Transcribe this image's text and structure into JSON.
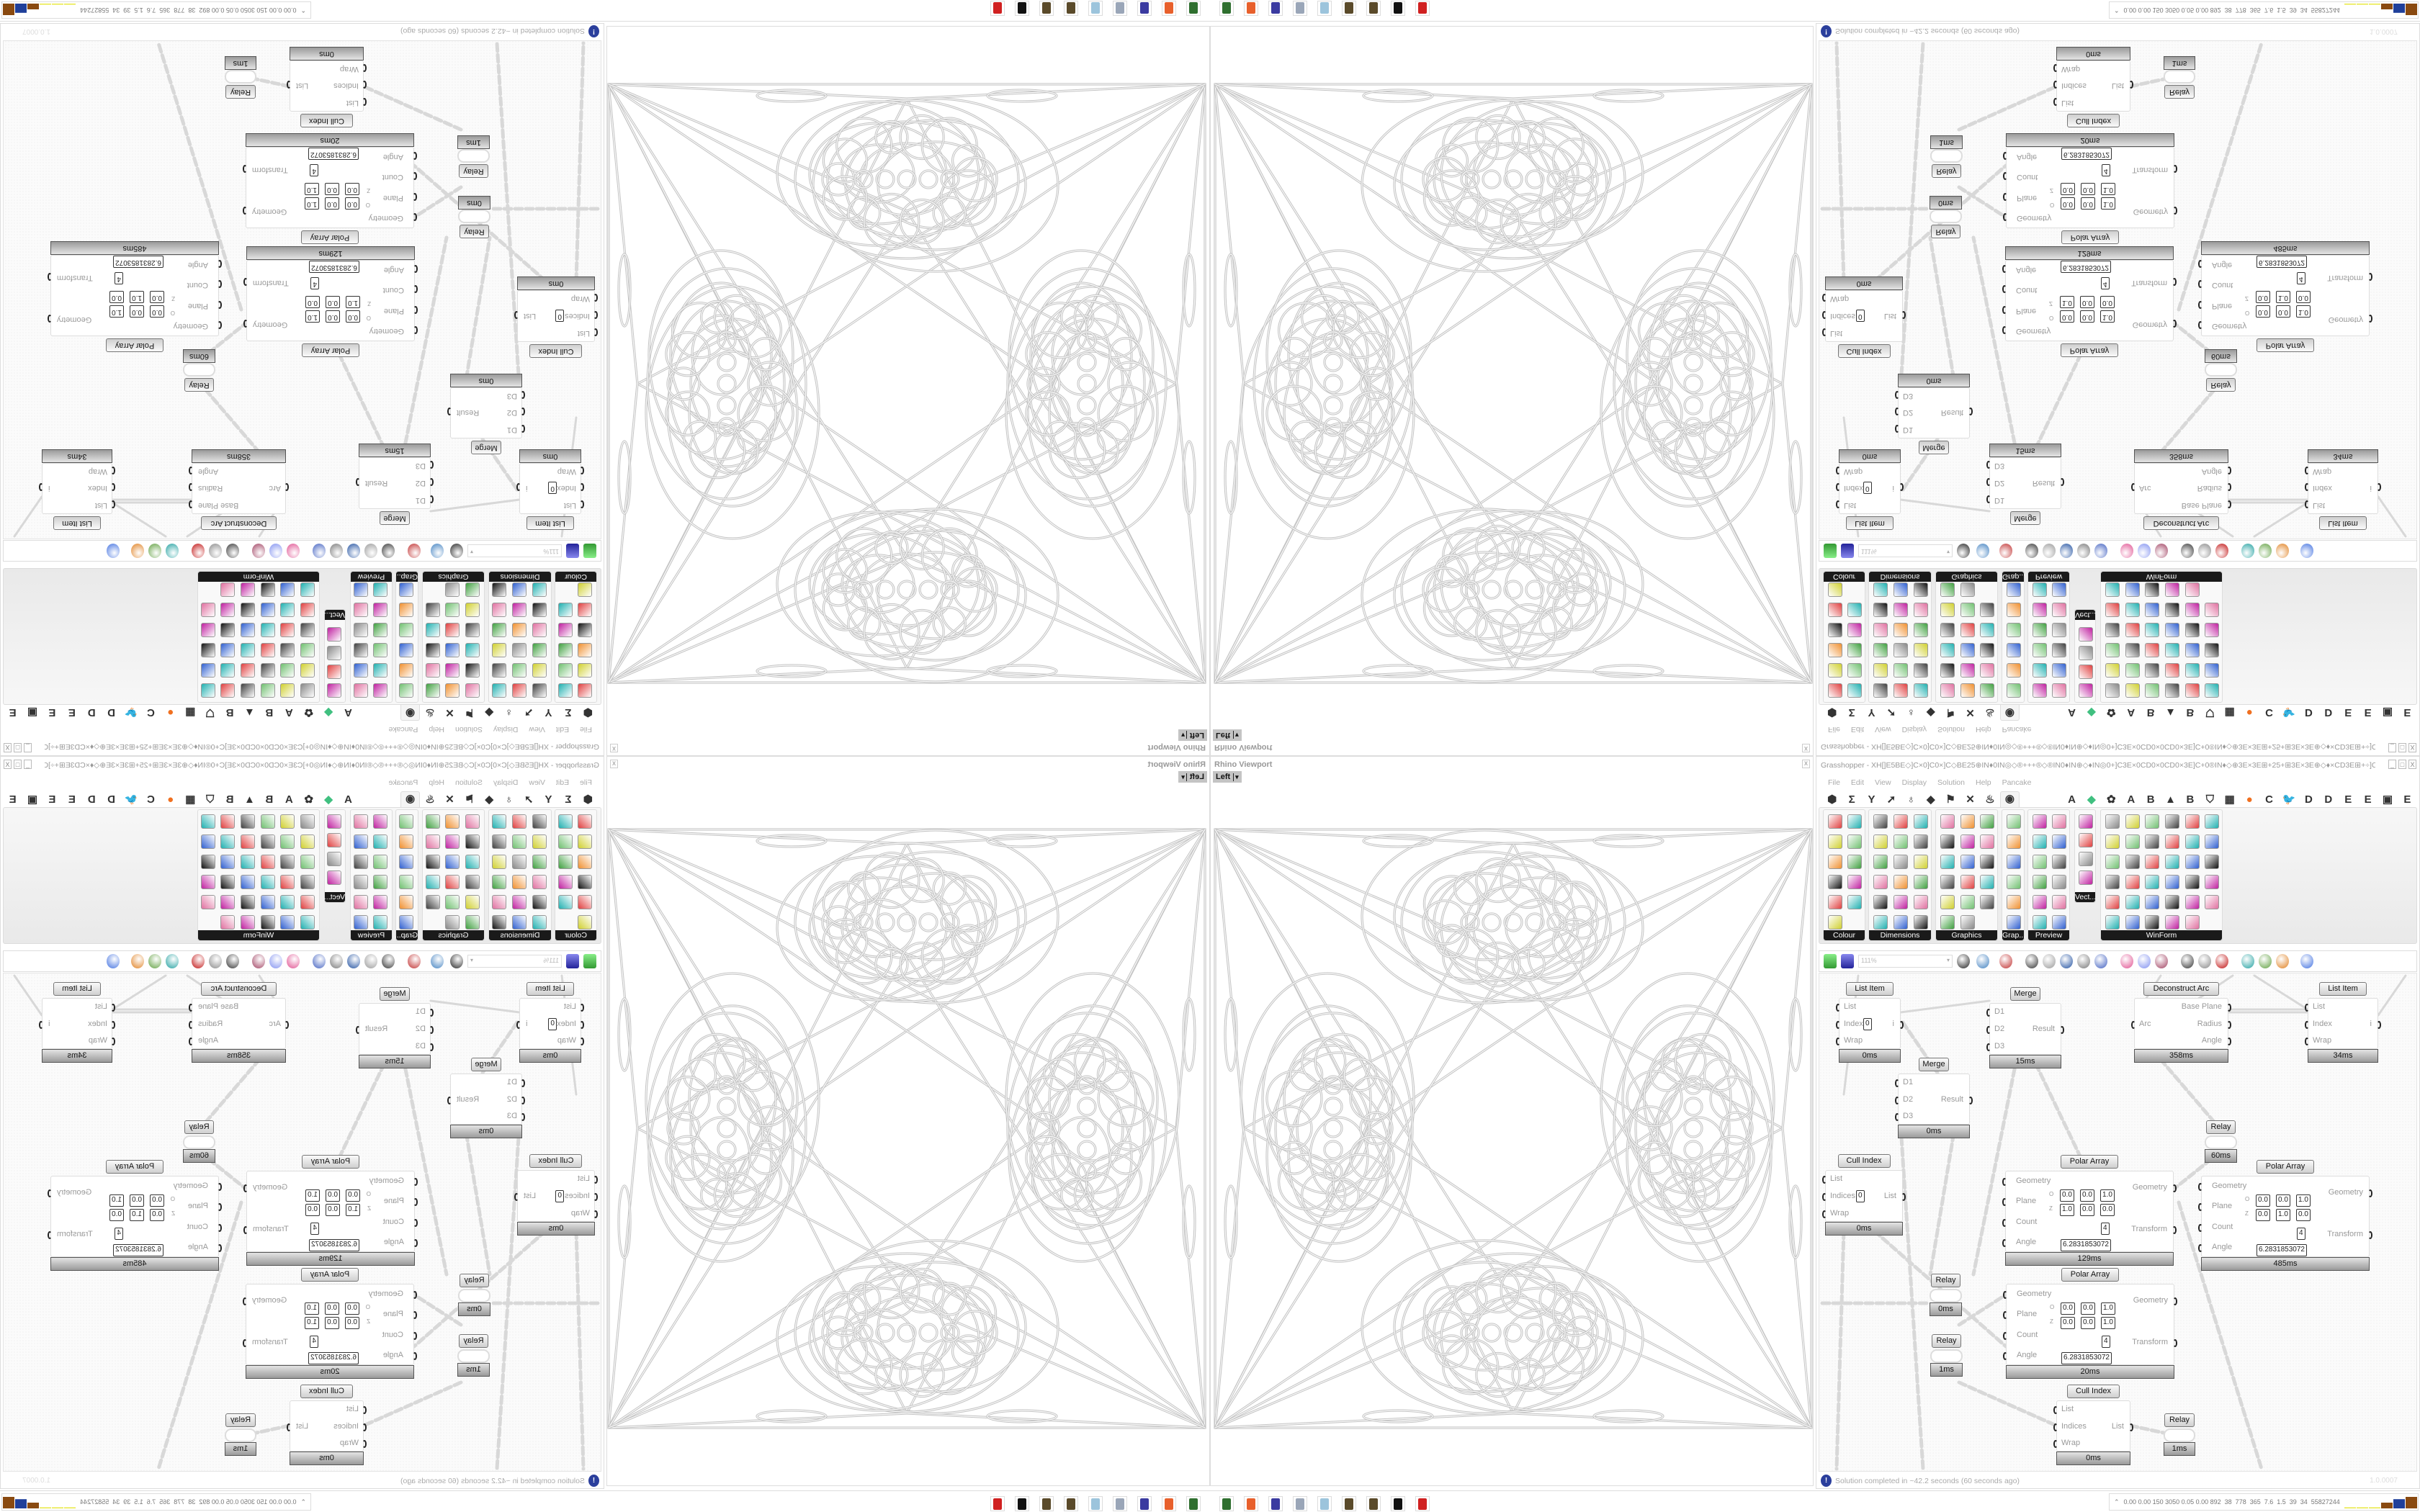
{
  "rhino": {
    "title": "Rhino Viewport",
    "view": "Left",
    "view_caret": "▾",
    "close": "x"
  },
  "gh": {
    "title": "Grasshopper - XH[]E5BE◇]C×0]C0×]C◇BE25⊕IN♦0IN◎◇®+++®◇®IN0♦IN⊕◇♦IN◎0+]C3E×0CD0×0CD0×3E]C+0®IN♦◇⊕3E×3E⊞+25+⊞3E×3E⊕◇♦×CD3E⊞+÷]C...",
    "window_buttons": [
      "_",
      "□",
      "X"
    ],
    "menu": [
      "File",
      "Edit",
      "View",
      "Display",
      "Solution",
      "Help",
      "Pancake"
    ],
    "tabs": [
      {
        "glyph": "⬢",
        "icon": "params-icon"
      },
      {
        "glyph": "Σ",
        "icon": "maths-icon"
      },
      {
        "glyph": "Y",
        "icon": "sets-icon"
      },
      {
        "glyph": "➚",
        "icon": "vector-icon"
      },
      {
        "glyph": "♁",
        "icon": "curve-icon"
      },
      {
        "glyph": "◆",
        "icon": "surface-icon"
      },
      {
        "glyph": "⚑",
        "icon": "mesh-icon"
      },
      {
        "glyph": "✕",
        "icon": "intersect-icon"
      },
      {
        "glyph": "♨",
        "icon": "transform-icon"
      },
      {
        "glyph": "◉",
        "icon": "display-eye-icon",
        "selected": true
      },
      {
        "glyph": "A",
        "icon": "letter-a-icon"
      },
      {
        "glyph": "◆",
        "icon": "green-gem-icon"
      },
      {
        "glyph": "✿",
        "icon": "gear-icon"
      },
      {
        "glyph": "A",
        "icon": "letter-a-icon"
      },
      {
        "glyph": "B",
        "icon": "letter-b-icon"
      },
      {
        "glyph": "▲",
        "icon": "mountain-icon"
      },
      {
        "glyph": "B",
        "icon": "letter-b-icon"
      },
      {
        "glyph": "⛉",
        "icon": "shield-icon"
      },
      {
        "glyph": "▦",
        "icon": "grid-icon"
      },
      {
        "glyph": "●",
        "icon": "orange-circle-icon"
      },
      {
        "glyph": "C",
        "icon": "letter-c-icon"
      },
      {
        "glyph": "🐦",
        "icon": "bird-icon"
      },
      {
        "glyph": "D",
        "icon": "letter-d-icon"
      },
      {
        "glyph": "D",
        "icon": "letter-d-icon"
      },
      {
        "glyph": "E",
        "icon": "letter-e-icon"
      },
      {
        "glyph": "E",
        "icon": "letter-e-icon"
      },
      {
        "glyph": "▣",
        "icon": "grid-box-icon"
      },
      {
        "glyph": "E",
        "icon": "letter-e-icon"
      }
    ],
    "ribbon_panels": [
      "Colour",
      "Dimensions",
      "Graphics",
      "Grap...",
      "Preview",
      "Vect...",
      "WinForm"
    ],
    "zoom": "111%",
    "components": [
      {
        "label": "List Item",
        "inputs": [
          "List",
          "Index",
          "Wrap"
        ],
        "outputs": [
          "i"
        ],
        "value": "0",
        "timer": "0ms"
      },
      {
        "label": "Merge",
        "inputs": [
          "D1",
          "D2",
          "D3"
        ],
        "outputs": [
          "Result"
        ],
        "timer": "15ms"
      },
      {
        "label": "Deconstruct Arc",
        "inputs": [
          "Arc"
        ],
        "outputs": [
          "Base Plane",
          "Radius",
          "Angle"
        ],
        "timer": "358ms"
      },
      {
        "label": "List Item",
        "inputs": [
          "List",
          "Index",
          "Wrap"
        ],
        "outputs": [
          "i"
        ],
        "timer": "34ms"
      },
      {
        "label": "Merge",
        "inputs": [
          "D1",
          "D2",
          "D3"
        ],
        "outputs": [
          "Result"
        ],
        "timer": "0ms"
      },
      {
        "label": "Relay",
        "relay": true,
        "timer": "60ms"
      },
      {
        "label": "Cull Index",
        "inputs": [
          "List",
          "Indices",
          "Wrap"
        ],
        "outputs": [
          "List"
        ],
        "value": "0",
        "timer": "0ms"
      },
      {
        "label": "Polar Array",
        "inputs": [
          "Geometry",
          "Plane",
          "Count",
          "Angle"
        ],
        "outputs": [
          "Geometry",
          "Transform"
        ],
        "plane_o": [
          "0.0",
          "0.0",
          "1.0"
        ],
        "plane_z": [
          "1.0",
          "0.0",
          "0.0"
        ],
        "count": "4",
        "angle": "6.2831853072",
        "timer": "129ms"
      },
      {
        "label": "Polar Array",
        "inputs": [
          "Geometry",
          "Plane",
          "Count",
          "Angle"
        ],
        "outputs": [
          "Geometry",
          "Transform"
        ],
        "plane_o": [
          "0.0",
          "0.0",
          "1.0"
        ],
        "plane_z": [
          "0.0",
          "1.0",
          "0.0"
        ],
        "count": "4",
        "angle": "6.2831853072",
        "timer": "485ms"
      },
      {
        "label": "Relay",
        "relay": true,
        "timer": "0ms"
      },
      {
        "label": "Polar Array",
        "inputs": [
          "Geometry",
          "Plane",
          "Count",
          "Angle"
        ],
        "outputs": [
          "Geometry",
          "Transform"
        ],
        "plane_o": [
          "0.0",
          "0.0",
          "1.0"
        ],
        "plane_z": [
          "0.0",
          "0.0",
          "1.0"
        ],
        "count": "4",
        "angle": "6.2831853072",
        "timer": "20ms"
      },
      {
        "label": "Relay",
        "relay": true,
        "timer": "1ms"
      },
      {
        "label": "Cull Index",
        "inputs": [
          "List",
          "Indices",
          "Wrap"
        ],
        "outputs": [
          "List"
        ],
        "timer": "0ms"
      },
      {
        "label": "Relay",
        "relay": true,
        "timer": "1ms"
      }
    ],
    "plane_axis_labels": {
      "o": "O",
      "z": "Z",
      "x": "X",
      "y": "Y",
      "zc": "Z"
    },
    "status": {
      "text": "Solution completed in ~42.2 seconds (60 seconds ago)",
      "icon": "info-icon",
      "version": "1.0.0007"
    }
  },
  "perf": {
    "values": "0.00 0.00 150 3050 0.05 0.00 892  38  778  365  7.6  1.5  39  34  55827244",
    "bars": [
      0.05,
      0.05,
      0.05,
      0.5,
      0.8,
      1.0,
      0.05,
      0.2
    ],
    "bar_colors": [
      "#e8e840",
      "#e8e840",
      "#e8e840",
      "#8a4a10",
      "#1f3f9a",
      "#8a4a10",
      "#40c040",
      "#c02020"
    ]
  },
  "taskbar": {
    "icons": [
      {
        "name": "terminal-icon",
        "color": "#2f6f2f"
      },
      {
        "name": "firefox-icon",
        "color": "#e8602c"
      },
      {
        "name": "floppy-64-icon",
        "color": "#3a3aa0"
      },
      {
        "name": "file-stack-icon",
        "color": "#9aa6b8"
      },
      {
        "name": "notepad-icon",
        "color": "#9cc4dc"
      },
      {
        "name": "seed-icon",
        "color": "#5a4a2a"
      },
      {
        "name": "seed-icon",
        "color": "#5a4a2a"
      },
      {
        "name": "rhino-icon",
        "color": "#111111"
      },
      {
        "name": "red-gear-icon",
        "color": "#d02020"
      }
    ]
  }
}
